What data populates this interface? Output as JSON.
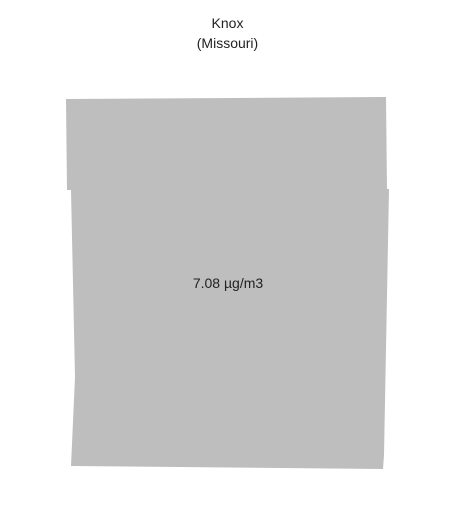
{
  "map": {
    "county_name": "Knox",
    "state_name": "(Missouri)",
    "value_label": "7.08 µg/m3",
    "county_fill_color": "#bebebe",
    "background_color": "#ffffff"
  }
}
